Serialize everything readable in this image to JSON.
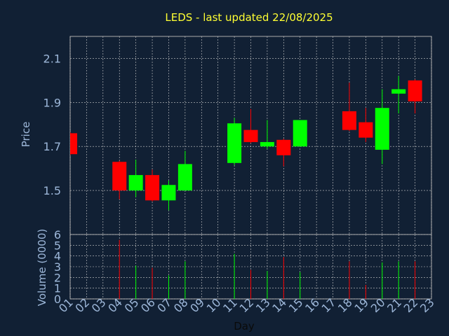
{
  "chart_data": {
    "type": "candlestick",
    "title": "LEDS - last updated 22/08/2025",
    "xlabel": "Day",
    "ylabel_price": "Price",
    "ylabel_volume": "Volume (0000)",
    "x_ticks": [
      "01",
      "02",
      "03",
      "04",
      "05",
      "06",
      "07",
      "08",
      "09",
      "10",
      "11",
      "12",
      "13",
      "14",
      "15",
      "16",
      "17",
      "18",
      "19",
      "20",
      "21",
      "22",
      "23"
    ],
    "price_ticks": [
      "2.1",
      "1.9",
      "1.7",
      "1.5"
    ],
    "volume_ticks": [
      "6",
      "5",
      "4",
      "3",
      "2",
      "1",
      "0"
    ],
    "price_ylim": [
      1.3,
      2.2
    ],
    "volume_ylim": [
      0,
      6
    ],
    "grid": true,
    "colors": {
      "background": "#112034",
      "up": "#00ff00",
      "down": "#ff0000",
      "grid": "#cccccc",
      "title": "#ffff33",
      "text": "#9db7d9",
      "frame": "#aaaaaa"
    },
    "candles": [
      {
        "day": 1,
        "open": 1.76,
        "close": 1.665,
        "high": 1.765,
        "low": 1.66,
        "volume": 0
      },
      {
        "day": 4,
        "open": 1.63,
        "close": 1.5,
        "high": 1.635,
        "low": 1.46,
        "volume": 5.5
      },
      {
        "day": 5,
        "open": 1.5,
        "close": 1.57,
        "high": 1.64,
        "low": 1.47,
        "volume": 3.1
      },
      {
        "day": 6,
        "open": 1.57,
        "close": 1.455,
        "high": 1.595,
        "low": 1.45,
        "volume": 2.9
      },
      {
        "day": 7,
        "open": 1.455,
        "close": 1.525,
        "high": 1.545,
        "low": 1.41,
        "volume": 2.2
      },
      {
        "day": 8,
        "open": 1.5,
        "close": 1.62,
        "high": 1.68,
        "low": 1.5,
        "volume": 3.5
      },
      {
        "day": 11,
        "open": 1.625,
        "close": 1.805,
        "high": 1.83,
        "low": 1.615,
        "volume": 4.2
      },
      {
        "day": 12,
        "open": 1.775,
        "close": 1.72,
        "high": 1.87,
        "low": 1.715,
        "volume": 2.7
      },
      {
        "day": 13,
        "open": 1.7,
        "close": 1.72,
        "high": 1.82,
        "low": 1.69,
        "volume": 2.6
      },
      {
        "day": 14,
        "open": 1.73,
        "close": 1.66,
        "high": 1.735,
        "low": 1.61,
        "volume": 3.9
      },
      {
        "day": 15,
        "open": 1.7,
        "close": 1.82,
        "high": 1.82,
        "low": 1.7,
        "volume": 2.5
      },
      {
        "day": 18,
        "open": 1.86,
        "close": 1.775,
        "high": 1.99,
        "low": 1.77,
        "volume": 3.5
      },
      {
        "day": 19,
        "open": 1.81,
        "close": 1.74,
        "high": 1.875,
        "low": 1.72,
        "volume": 1.3
      },
      {
        "day": 20,
        "open": 1.685,
        "close": 1.875,
        "high": 1.96,
        "low": 1.62,
        "volume": 3.4
      },
      {
        "day": 21,
        "open": 1.94,
        "close": 1.96,
        "high": 2.02,
        "low": 1.85,
        "volume": 3.5
      },
      {
        "day": 22,
        "open": 2.0,
        "close": 1.905,
        "high": 2.005,
        "low": 1.85,
        "volume": 3.5
      }
    ]
  }
}
